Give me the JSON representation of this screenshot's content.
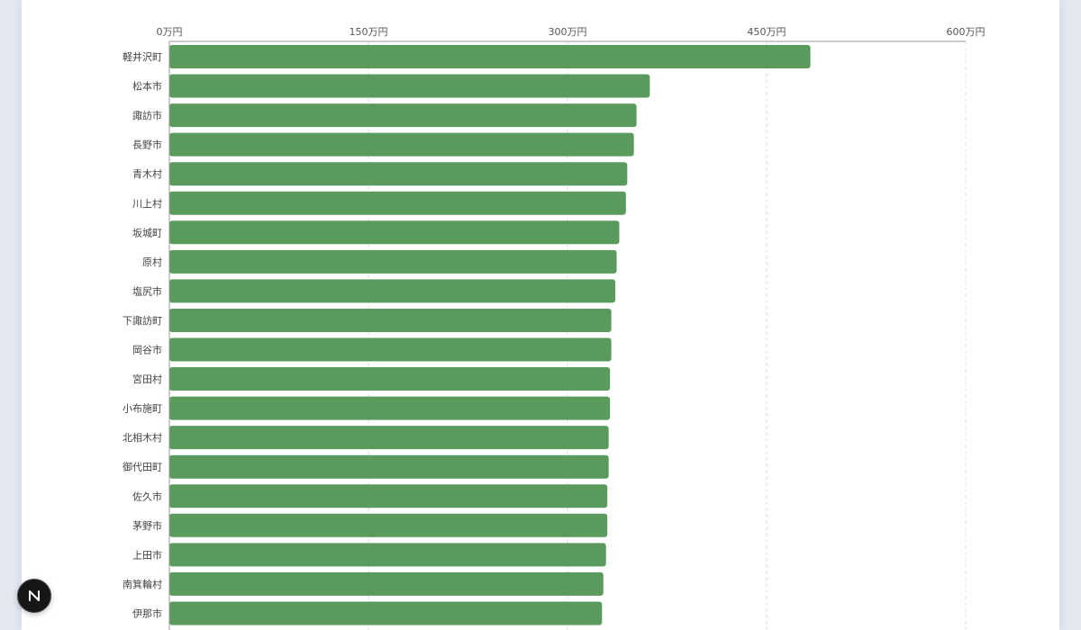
{
  "chart_data": {
    "type": "bar",
    "orientation": "horizontal",
    "title": "",
    "xlabel": "",
    "ylabel": "",
    "unit_suffix": "万円",
    "xlim": [
      0,
      600
    ],
    "xticks": [
      0,
      150,
      300,
      450,
      600
    ],
    "tick_labels": [
      "0万円",
      "150万円",
      "300万円",
      "450万円",
      "600万円"
    ],
    "grid": true,
    "legend": "none",
    "bar_color": "#5a9a5c",
    "categories": [
      "軽井沢町",
      "松本市",
      "諏訪市",
      "長野市",
      "青木村",
      "川上村",
      "坂城町",
      "原村",
      "塩尻市",
      "下諏訪町",
      "岡谷市",
      "宮田村",
      "小布施町",
      "北相木村",
      "御代田町",
      "佐久市",
      "茅野市",
      "上田市",
      "南箕輪村",
      "伊那市"
    ],
    "values": [
      483,
      362,
      352,
      350,
      345,
      344,
      339,
      337,
      336,
      333,
      333,
      332,
      332,
      331,
      331,
      330,
      330,
      329,
      327,
      326
    ]
  },
  "badge": {
    "icon": "n-logo-icon"
  }
}
